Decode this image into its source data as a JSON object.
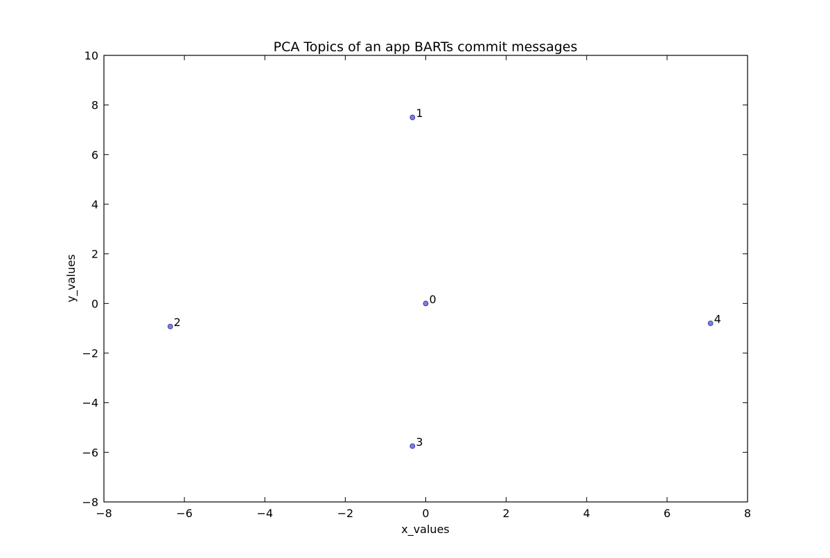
{
  "chart_data": {
    "type": "scatter",
    "title": "PCA Topics of an app BARTs commit messages",
    "xlabel": "x_values",
    "ylabel": "y_values",
    "xlim": [
      -8,
      8
    ],
    "ylim": [
      -8,
      10
    ],
    "xticks": [
      -8,
      -6,
      -4,
      -2,
      0,
      2,
      4,
      6,
      8
    ],
    "yticks": [
      -8,
      -6,
      -4,
      -2,
      0,
      2,
      4,
      6,
      8,
      10
    ],
    "grid": false,
    "marker_color": "#6f6fe0",
    "points": [
      {
        "label": "0",
        "x": 0.0,
        "y": 0.0
      },
      {
        "label": "1",
        "x": -0.33,
        "y": 7.5
      },
      {
        "label": "2",
        "x": -6.35,
        "y": -0.93
      },
      {
        "label": "3",
        "x": -0.33,
        "y": -5.75
      },
      {
        "label": "4",
        "x": 7.08,
        "y": -0.8
      }
    ]
  }
}
